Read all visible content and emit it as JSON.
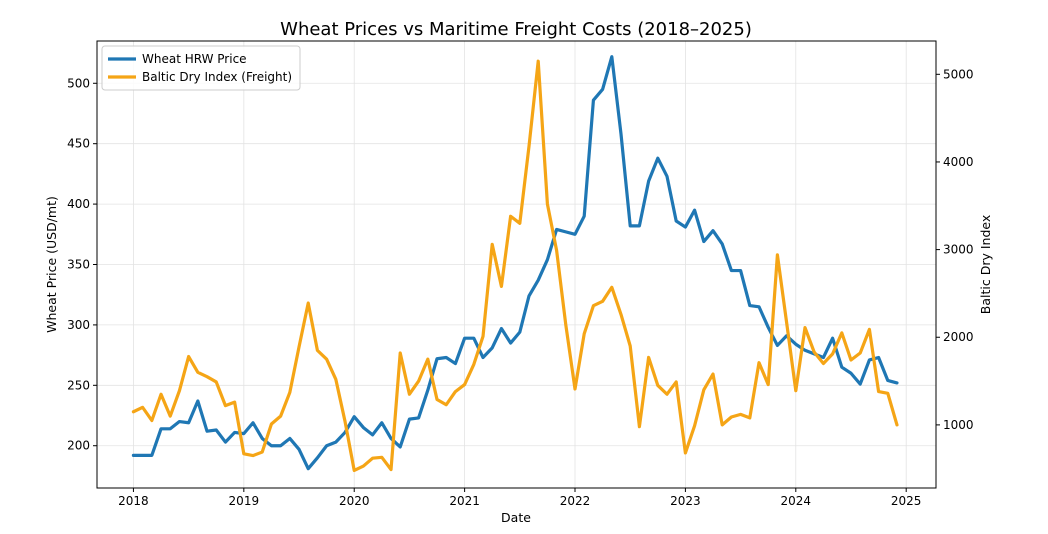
{
  "chart_data": {
    "type": "line",
    "title": "Wheat Prices vs Maritime Freight Costs (2018–2025)",
    "xlabel": "Date",
    "ylabel_left": "Wheat Price (USD/mt)",
    "ylabel_right": "Baltic Dry Index",
    "xlim": [
      2017.67,
      2025.27
    ],
    "ylim_left": [
      165,
      535
    ],
    "ylim_right": [
      280,
      5380
    ],
    "x_ticks": [
      2018,
      2019,
      2020,
      2021,
      2022,
      2023,
      2024,
      2025
    ],
    "x_tick_labels": [
      "2018",
      "2019",
      "2020",
      "2021",
      "2022",
      "2023",
      "2024",
      "2025"
    ],
    "y_left_ticks": [
      200,
      250,
      300,
      350,
      400,
      450,
      500
    ],
    "y_left_tick_labels": [
      "200",
      "250",
      "300",
      "350",
      "400",
      "450",
      "500"
    ],
    "y_right_ticks": [
      1000,
      2000,
      3000,
      4000,
      5000
    ],
    "y_right_tick_labels": [
      "1000",
      "2000",
      "3000",
      "4000",
      "5000"
    ],
    "grid": true,
    "legend_position": "top-left",
    "x_start": 2018,
    "x_step_months": 1,
    "series": [
      {
        "name": "Wheat HRW Price",
        "axis": "left",
        "color": "#1f77b4",
        "values": [
          192,
          192,
          192,
          214,
          214,
          220,
          219,
          237,
          212,
          213,
          203,
          211,
          210,
          219,
          206,
          200,
          200,
          206,
          197,
          181,
          190,
          200,
          203,
          211,
          224,
          215,
          209,
          219,
          206,
          199,
          222,
          223,
          246,
          272,
          273,
          268,
          289,
          289,
          273,
          281,
          297,
          285,
          294,
          324,
          337,
          354,
          379,
          377,
          375,
          390,
          486,
          495,
          522,
          458,
          382,
          382,
          419,
          438,
          423,
          386,
          381,
          395,
          369,
          378,
          367,
          345,
          345,
          316,
          315,
          298,
          283,
          291,
          284,
          279,
          276,
          273,
          289,
          265,
          260,
          251,
          271,
          273,
          254,
          252
        ]
      },
      {
        "name": "Baltic Dry Index (Freight)",
        "axis": "right",
        "color": "#f5a516",
        "values": [
          1150,
          1200,
          1050,
          1350,
          1100,
          1390,
          1780,
          1600,
          1550,
          1490,
          1220,
          1260,
          670,
          650,
          690,
          1010,
          1100,
          1370,
          1890,
          2390,
          1850,
          1750,
          1520,
          1040,
          480,
          530,
          620,
          630,
          490,
          1820,
          1350,
          1500,
          1750,
          1290,
          1230,
          1380,
          1460,
          1690,
          2010,
          3060,
          2580,
          3380,
          3300,
          4180,
          5150,
          3520,
          2990,
          2140,
          1410,
          2040,
          2360,
          2410,
          2570,
          2260,
          1900,
          980,
          1770,
          1450,
          1350,
          1490,
          680,
          990,
          1400,
          1580,
          1000,
          1090,
          1120,
          1080,
          1710,
          1460,
          2940,
          2170,
          1390,
          2110,
          1830,
          1700,
          1810,
          2050,
          1740,
          1820,
          2090,
          1380,
          1360,
          1000
        ]
      }
    ]
  }
}
